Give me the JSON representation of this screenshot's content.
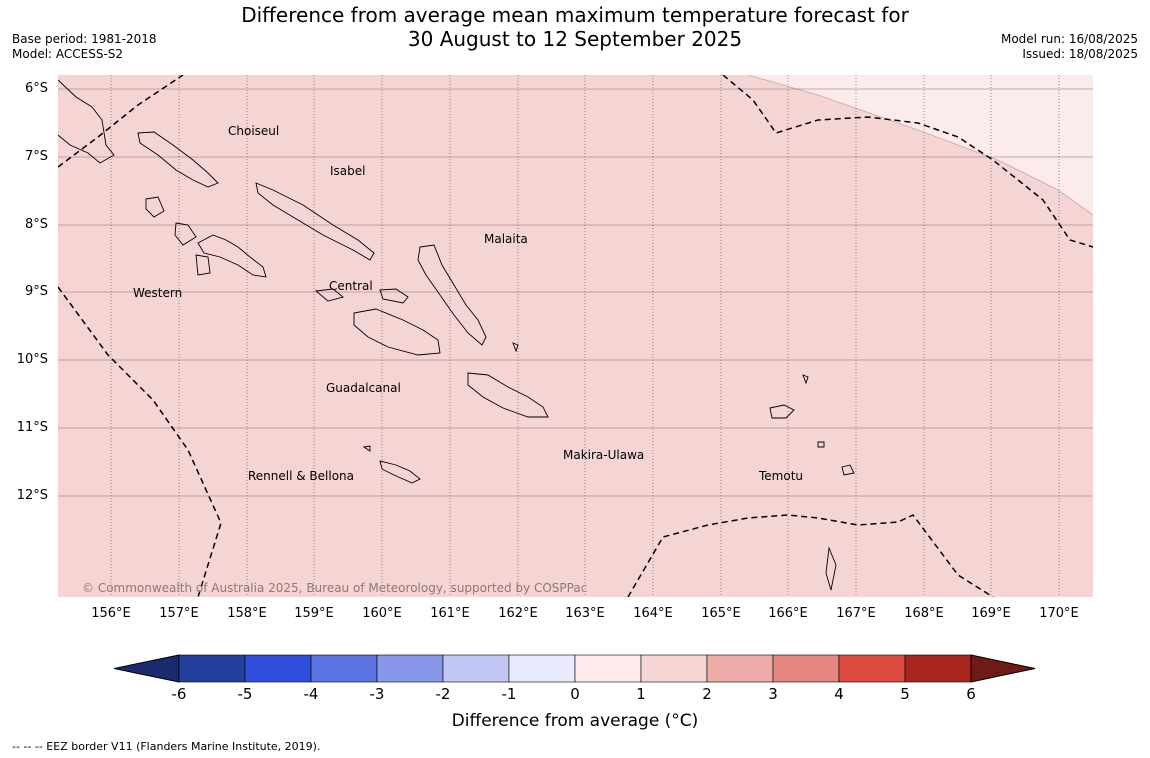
{
  "header": {
    "base_period": "Base period: 1981-2018",
    "model": "Model: ACCESS-S2",
    "title_line1": "Difference from average mean maximum temperature forecast for",
    "title_line2": "30 August to 12 September 2025",
    "model_run": "Model run: 16/08/2025",
    "issued": "Issued: 18/08/2025"
  },
  "map": {
    "lat_labels": [
      "6°S",
      "7°S",
      "8°S",
      "9°S",
      "10°S",
      "11°S",
      "12°S"
    ],
    "lon_labels": [
      "156°E",
      "157°E",
      "158°E",
      "159°E",
      "160°E",
      "161°E",
      "162°E",
      "163°E",
      "164°E",
      "165°E",
      "166°E",
      "167°E",
      "168°E",
      "169°E",
      "170°E"
    ],
    "provinces": [
      "Choiseul",
      "Isabel",
      "Malaita",
      "Western",
      "Central",
      "Guadalcanal",
      "Makira-Ulawa",
      "Temotu",
      "Rennell & Bellona"
    ],
    "copyright": "© Commonwealth of Australia 2025, Bureau of Meteorology, supported by COSPPac",
    "fill_main": "#f4d5d3",
    "fill_light": "#fbebea"
  },
  "colorbar": {
    "ticks": [
      "-6",
      "-5",
      "-4",
      "-3",
      "-2",
      "-1",
      "0",
      "1",
      "2",
      "3",
      "4",
      "5",
      "6"
    ],
    "colors": [
      "#253f9e",
      "#2f4fdc",
      "#5b73e3",
      "#8798ea",
      "#c2c8f3",
      "#e8ebfc",
      "#fcebea",
      "#f4d5d3",
      "#eeaca8",
      "#e5867f",
      "#dc4a40",
      "#a8261f"
    ],
    "extend_low": "#1a2a6c",
    "extend_high": "#6e1a16",
    "label": "Difference from average (°C)"
  },
  "footnote": "--  --  -- EEZ border V11 (Flanders Marine Institute, 2019)."
}
